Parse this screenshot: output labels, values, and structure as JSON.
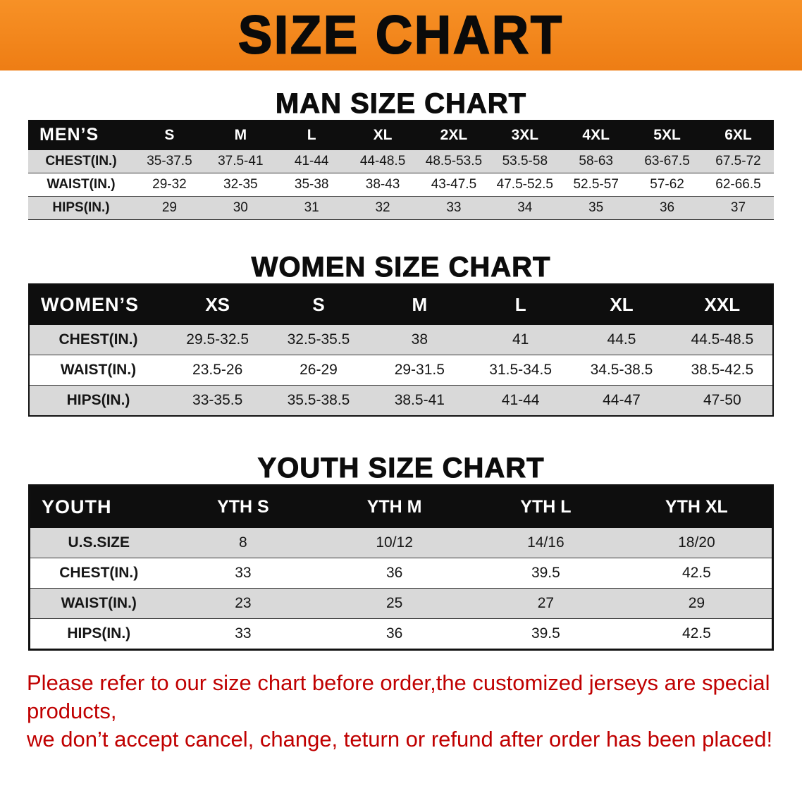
{
  "banner": {
    "title": "SIZE CHART",
    "bg_color": "#F08020",
    "text_color": "#0A0A0A"
  },
  "sections": [
    {
      "id": "men",
      "heading": "MAN SIZE CHART",
      "table": {
        "header": [
          "MEN’S",
          "S",
          "M",
          "L",
          "XL",
          "2XL",
          "3XL",
          "4XL",
          "5XL",
          "6XL"
        ],
        "rows": [
          [
            "CHEST(IN.)",
            "35-37.5",
            "37.5-41",
            "41-44",
            "44-48.5",
            "48.5-53.5",
            "53.5-58",
            "58-63",
            "63-67.5",
            "67.5-72"
          ],
          [
            "WAIST(IN.)",
            "29-32",
            "32-35",
            "35-38",
            "38-43",
            "43-47.5",
            "47.5-52.5",
            "52.5-57",
            "57-62",
            "62-66.5"
          ],
          [
            "HIPS(IN.)",
            "29",
            "30",
            "31",
            "32",
            "33",
            "34",
            "35",
            "36",
            "37"
          ]
        ]
      }
    },
    {
      "id": "women",
      "heading": "WOMEN SIZE CHART",
      "table": {
        "header": [
          "WOMEN’S",
          "XS",
          "S",
          "M",
          "L",
          "XL",
          "XXL"
        ],
        "rows": [
          [
            "CHEST(IN.)",
            "29.5-32.5",
            "32.5-35.5",
            "38",
            "41",
            "44.5",
            "44.5-48.5"
          ],
          [
            "WAIST(IN.)",
            "23.5-26",
            "26-29",
            "29-31.5",
            "31.5-34.5",
            "34.5-38.5",
            "38.5-42.5"
          ],
          [
            "HIPS(IN.)",
            "33-35.5",
            "35.5-38.5",
            "38.5-41",
            "41-44",
            "44-47",
            "47-50"
          ]
        ]
      }
    },
    {
      "id": "youth",
      "heading": "YOUTH SIZE CHART",
      "table": {
        "header": [
          "YOUTH",
          "YTH S",
          "YTH M",
          "YTH L",
          "YTH XL"
        ],
        "rows": [
          [
            "U.S.SIZE",
            "8",
            "10/12",
            "14/16",
            "18/20"
          ],
          [
            "CHEST(IN.)",
            "33",
            "36",
            "39.5",
            "42.5"
          ],
          [
            "WAIST(IN.)",
            "23",
            "25",
            "27",
            "29"
          ],
          [
            "HIPS(IN.)",
            "33",
            "36",
            "39.5",
            "42.5"
          ]
        ]
      }
    }
  ],
  "footer": {
    "line1": "Please refer to our size chart before order,the customized jerseys are special products,",
    "line2": "we don’t accept cancel, change, teturn or refund after order has been placed!",
    "text_color": "#C00000"
  },
  "colors": {
    "header_row_bg": "#0E0E0E",
    "alt_row_bg": "#D9D9D9"
  }
}
